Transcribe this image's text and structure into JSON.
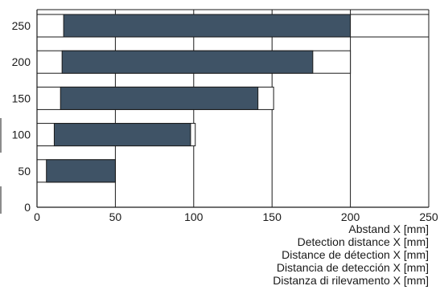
{
  "chart_data": {
    "type": "bar",
    "orientation": "horizontal-range",
    "y_ticks": [
      "250",
      "200",
      "150",
      "100",
      "50",
      "0"
    ],
    "x_ticks": [
      "0",
      "50",
      "100",
      "150",
      "200",
      "250"
    ],
    "xlim": [
      0,
      250
    ],
    "ylim": [
      0,
      250
    ],
    "grid": true,
    "xlabel_lines": [
      "Abstand X [mm]",
      "Detection distance X [mm]",
      "Distance de détection X [mm]",
      "Distancia de detección X [mm]",
      "Distanza di rilevamento X [mm]"
    ],
    "rows": [
      {
        "y": 250,
        "outer": [
          0,
          250
        ],
        "inner": [
          17,
          200
        ]
      },
      {
        "y": 200,
        "outer": [
          0,
          200
        ],
        "inner": [
          16,
          176
        ]
      },
      {
        "y": 150,
        "outer": [
          0,
          151
        ],
        "inner": [
          15,
          141
        ]
      },
      {
        "y": 100,
        "outer": [
          0,
          101
        ],
        "inner": [
          11,
          98
        ]
      },
      {
        "y": 50,
        "outer": [
          0,
          50
        ],
        "inner": [
          6,
          50
        ]
      }
    ],
    "colors": {
      "inner_fill": "#3f5366",
      "inner_stroke": "#1a1a1a",
      "outer_fill": "#ffffff",
      "axis": "#1a1a1a",
      "grid": "#1a1a1a"
    }
  }
}
